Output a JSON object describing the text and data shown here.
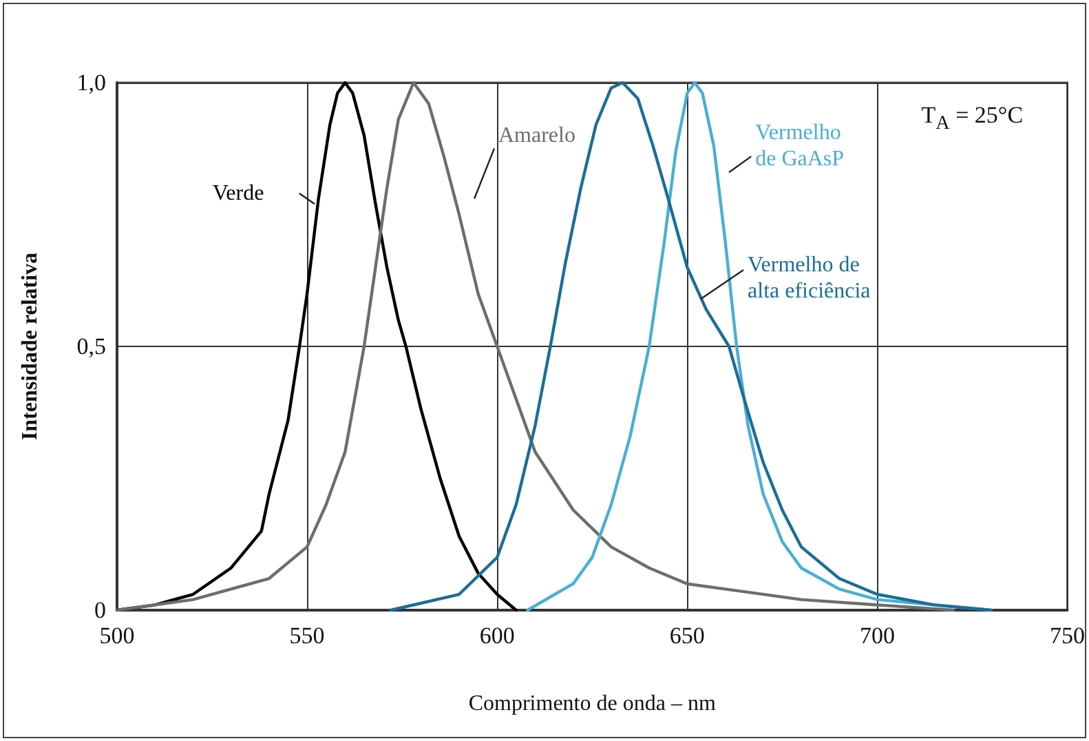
{
  "chart_data": {
    "type": "line",
    "xlabel": "Comprimento de onda – nm",
    "ylabel": "Intensidade relativa",
    "annotations": [
      "T$_{A}$ = 25°C"
    ],
    "xlim": [
      500,
      750
    ],
    "xticks": [
      500,
      550,
      600,
      650,
      700,
      750
    ],
    "ylim": [
      0,
      1
    ],
    "yticks": [
      0,
      {
        "value": 0.5,
        "label": "0,5"
      },
      {
        "value": 1,
        "label": "1,0"
      }
    ],
    "grid": true,
    "marker": "none",
    "line_style": "solid",
    "series": [
      {
        "name": "Verde",
        "color": "#000000",
        "x": [
          500,
          510,
          520,
          530,
          538,
          540,
          545,
          548,
          550,
          553,
          556,
          558,
          560,
          562,
          565,
          568,
          571,
          574,
          576,
          580,
          585,
          590,
          595,
          600,
          605
        ],
        "values": [
          0,
          0.01,
          0.03,
          0.08,
          0.15,
          0.22,
          0.36,
          0.5,
          0.6,
          0.78,
          0.92,
          0.98,
          1,
          0.98,
          0.9,
          0.77,
          0.65,
          0.55,
          0.5,
          0.38,
          0.25,
          0.14,
          0.07,
          0.03,
          0
        ]
      },
      {
        "name": "Amarelo",
        "color": "#6d6d6d",
        "x": [
          500,
          520,
          540,
          550,
          555,
          560,
          565,
          568,
          571,
          574,
          578,
          582,
          586,
          590,
          595,
          600,
          605,
          610,
          620,
          630,
          640,
          650,
          660,
          680,
          700,
          720
        ],
        "values": [
          0,
          0.02,
          0.06,
          0.12,
          0.2,
          0.3,
          0.5,
          0.65,
          0.8,
          0.93,
          1,
          0.96,
          0.86,
          0.75,
          0.6,
          0.5,
          0.4,
          0.3,
          0.19,
          0.12,
          0.08,
          0.05,
          0.04,
          0.02,
          0.01,
          0
        ]
      },
      {
        "name": "Vermelho de GaAsP",
        "color": "#4aaed6",
        "x": [
          608,
          620,
          625,
          630,
          635,
          640,
          644,
          647,
          650,
          652,
          654,
          657,
          660,
          663,
          666,
          670,
          675,
          680,
          690,
          700,
          715,
          730
        ],
        "values": [
          0,
          0.05,
          0.1,
          0.2,
          0.33,
          0.5,
          0.7,
          0.87,
          0.98,
          1,
          0.98,
          0.88,
          0.7,
          0.5,
          0.35,
          0.22,
          0.13,
          0.08,
          0.04,
          0.02,
          0.01,
          0
        ]
      },
      {
        "name": "Vermelho de alta eficiência",
        "color": "#1a6e99",
        "x": [
          572,
          590,
          600,
          605,
          610,
          614,
          618,
          622,
          626,
          630,
          633,
          637,
          641,
          645,
          650,
          655,
          661,
          665,
          670,
          675,
          680,
          690,
          700,
          715,
          730
        ],
        "values": [
          0,
          0.03,
          0.1,
          0.2,
          0.35,
          0.5,
          0.66,
          0.8,
          0.92,
          0.99,
          1,
          0.97,
          0.88,
          0.78,
          0.65,
          0.57,
          0.5,
          0.4,
          0.28,
          0.19,
          0.12,
          0.06,
          0.03,
          0.01,
          0
        ]
      }
    ]
  }
}
